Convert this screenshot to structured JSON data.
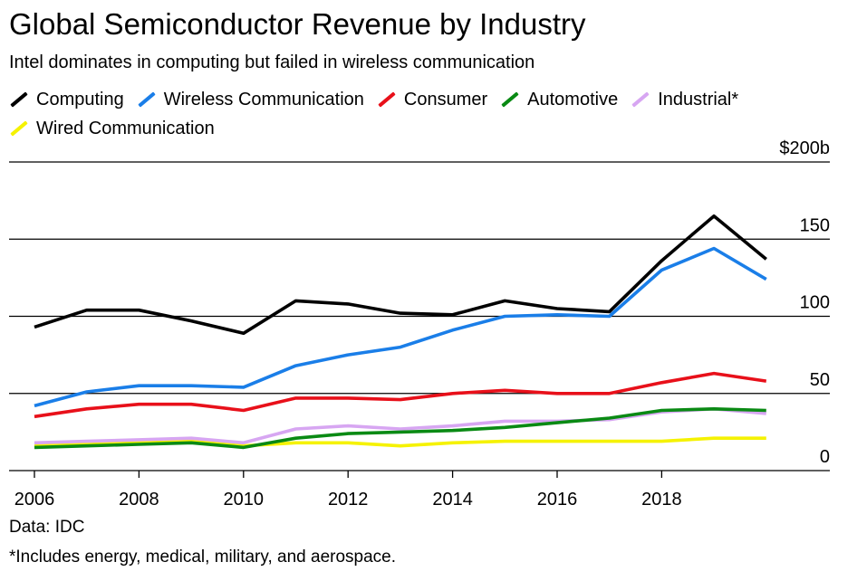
{
  "header": {
    "title": "Global Semiconductor Revenue by Industry",
    "subtitle": "Intel dominates in computing but failed in wireless communication"
  },
  "footer": {
    "source": "Data: IDC",
    "footnote": "*Includes energy, medical, military, and aerospace."
  },
  "chart_data": {
    "type": "line",
    "title": "Global Semiconductor Revenue by Industry",
    "subtitle": "Intel dominates in computing but failed in wireless communication",
    "x": [
      2006,
      2007,
      2008,
      2009,
      2010,
      2011,
      2012,
      2013,
      2014,
      2015,
      2016,
      2017,
      2018,
      2019,
      2020
    ],
    "x_tick_labels": [
      "2006",
      "2008",
      "2010",
      "2012",
      "2014",
      "2016",
      "2018"
    ],
    "y_tick_labels": [
      "0",
      "50",
      "100",
      "150",
      "$200b"
    ],
    "ylim": [
      0,
      200
    ],
    "grid": "horizontal",
    "legend_position": "top",
    "series": [
      {
        "name": "Computing",
        "color": "#000000",
        "values": [
          93,
          104,
          104,
          97,
          89,
          110,
          108,
          102,
          101,
          110,
          105,
          103,
          136,
          165,
          137
        ]
      },
      {
        "name": "Wireless Communication",
        "color": "#1a7ee8",
        "values": [
          42,
          51,
          55,
          55,
          54,
          68,
          75,
          80,
          91,
          100,
          101,
          100,
          130,
          144,
          124
        ]
      },
      {
        "name": "Consumer",
        "color": "#e8101a",
        "values": [
          35,
          40,
          43,
          43,
          39,
          47,
          47,
          46,
          50,
          52,
          50,
          50,
          57,
          63,
          58
        ]
      },
      {
        "name": "Automotive",
        "color": "#0a8a14",
        "values": [
          15,
          16,
          17,
          18,
          15,
          21,
          24,
          25,
          26,
          28,
          31,
          34,
          39,
          40,
          39
        ]
      },
      {
        "name": "Industrial*",
        "color": "#d7a6f2",
        "values": [
          18,
          19,
          20,
          21,
          18,
          27,
          29,
          27,
          29,
          32,
          32,
          33,
          38,
          40,
          37
        ]
      },
      {
        "name": "Wired Communication",
        "color": "#f5f200",
        "values": [
          16,
          17,
          18,
          19,
          16,
          18,
          18,
          16,
          18,
          19,
          19,
          19,
          19,
          21,
          21
        ]
      }
    ]
  }
}
